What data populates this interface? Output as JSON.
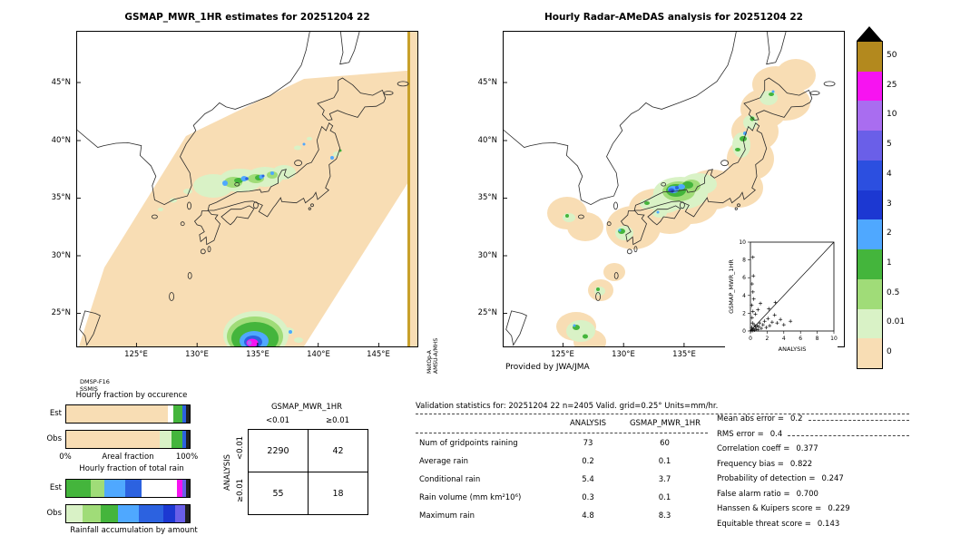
{
  "left_panel": {
    "title": "GSMAP_MWR_1HR estimates for 20251204 22",
    "lat_labels": [
      "45°N",
      "40°N",
      "35°N",
      "30°N",
      "25°N"
    ],
    "lon_labels": [
      "125°E",
      "130°E",
      "135°E",
      "140°E",
      "145°E"
    ],
    "source_line1": "DMSP-F16",
    "source_line2": "SSMIS",
    "edge_label_line1": "MetOp-A",
    "edge_label_line2": "AMSU-A/MHS"
  },
  "right_panel": {
    "title": "Hourly Radar-AMeDAS analysis for 20251204 22",
    "lat_labels": [
      "45°N",
      "40°N",
      "35°N",
      "30°N",
      "25°N"
    ],
    "lon_labels": [
      "125°E",
      "130°E",
      "135°E"
    ],
    "credit": "Provided by JWA/JMA",
    "inset": {
      "ylabel": "GSMAP_MWR_1HR",
      "xlabel": "ANALYSIS",
      "ticks": [
        0,
        2,
        4,
        6,
        8,
        10
      ]
    }
  },
  "colorbar": {
    "entries": [
      {
        "label": "50",
        "color": "#b3891e"
      },
      {
        "label": "25",
        "color": "#f713f1"
      },
      {
        "label": "10",
        "color": "#a96df0"
      },
      {
        "label": "5",
        "color": "#6a5fe8"
      },
      {
        "label": "4",
        "color": "#2c4fe0"
      },
      {
        "label": "3",
        "color": "#1c38d2"
      },
      {
        "label": "2",
        "color": "#4fa8ff"
      },
      {
        "label": "1",
        "color": "#44b53c"
      },
      {
        "label": "0.5",
        "color": "#a0dc78"
      },
      {
        "label": "0.01",
        "color": "#d9f2c6"
      },
      {
        "label": "0",
        "color": "#f8ddb4"
      }
    ]
  },
  "occurrence_chart": {
    "title": "Hourly fraction by occurence",
    "rows": [
      {
        "label": "Est",
        "segments": [
          {
            "color": "#f8ddb4",
            "pct": 82
          },
          {
            "color": "#ffffff",
            "pct": 5
          },
          {
            "color": "#44b53c",
            "pct": 7
          },
          {
            "color": "#2c62e0",
            "pct": 3
          },
          {
            "color": "#222222",
            "pct": 3
          }
        ]
      },
      {
        "label": "Obs",
        "segments": [
          {
            "color": "#f8ddb4",
            "pct": 76
          },
          {
            "color": "#d9f2c6",
            "pct": 9
          },
          {
            "color": "#44b53c",
            "pct": 9
          },
          {
            "color": "#2c62e0",
            "pct": 3
          },
          {
            "color": "#222222",
            "pct": 3
          }
        ]
      }
    ],
    "axis_min": "0%",
    "axis_label": "Areal fraction",
    "axis_max": "100%"
  },
  "totalrain_chart": {
    "title": "Hourly fraction of total rain",
    "rows": [
      {
        "label": "Est",
        "segments": [
          {
            "color": "#44b53c",
            "pct": 20
          },
          {
            "color": "#a0dc78",
            "pct": 11
          },
          {
            "color": "#4fa8ff",
            "pct": 17
          },
          {
            "color": "#2c62e0",
            "pct": 13
          },
          {
            "color": "#ffffff",
            "pct": 29
          },
          {
            "color": "#f713f1",
            "pct": 4
          },
          {
            "color": "#6a5fe8",
            "pct": 3
          },
          {
            "color": "#222222",
            "pct": 3
          }
        ]
      },
      {
        "label": "Obs",
        "segments": [
          {
            "color": "#d9f2c6",
            "pct": 13
          },
          {
            "color": "#a0dc78",
            "pct": 15
          },
          {
            "color": "#44b53c",
            "pct": 14
          },
          {
            "color": "#4fa8ff",
            "pct": 17
          },
          {
            "color": "#2c62e0",
            "pct": 20
          },
          {
            "color": "#1c38d2",
            "pct": 9
          },
          {
            "color": "#6a5fe8",
            "pct": 8
          },
          {
            "color": "#222222",
            "pct": 4
          }
        ]
      }
    ],
    "caption": "Rainfall accumulation by amount"
  },
  "contingency": {
    "title": "GSMAP_MWR_1HR",
    "side_label": "ANALYSIS",
    "col_headers": [
      "<0.01",
      "≥0.01"
    ],
    "row_headers": [
      "<0.01",
      "≥0.01"
    ],
    "values": [
      [
        "2290",
        "42"
      ],
      [
        "55",
        "18"
      ]
    ]
  },
  "validation": {
    "title": "Validation statistics for: 20251204 22  n=2405 Valid. grid=0.25° Units=mm/hr.",
    "col_headers": [
      "ANALYSIS",
      "GSMAP_MWR_1HR"
    ],
    "rows": [
      {
        "label": "Num of gridpoints raining",
        "analysis": "73",
        "gsmap": "60"
      },
      {
        "label": "Average rain",
        "analysis": "0.2",
        "gsmap": "0.1"
      },
      {
        "label": "Conditional rain",
        "analysis": "5.4",
        "gsmap": "3.7"
      },
      {
        "label": "Rain volume (mm km²10⁶)",
        "analysis": "0.3",
        "gsmap": "0.1"
      },
      {
        "label": "Maximum rain",
        "analysis": "4.8",
        "gsmap": "8.3"
      }
    ],
    "stats": [
      {
        "label": "Mean abs error =",
        "value": "0.2"
      },
      {
        "label": "RMS error =",
        "value": "0.4"
      },
      {
        "label": "Correlation coeff =",
        "value": "0.377"
      },
      {
        "label": "Frequency bias =",
        "value": "0.822"
      },
      {
        "label": "Probability of detection =",
        "value": "0.247"
      },
      {
        "label": "False alarm ratio =",
        "value": "0.700"
      },
      {
        "label": "Hanssen & Kuipers score =",
        "value": "0.229"
      },
      {
        "label": "Equitable threat score =",
        "value": "0.143"
      }
    ]
  },
  "chart_data": [
    {
      "type": "heatmap",
      "title": "GSMAP_MWR_1HR estimates for 20251204 22",
      "region": "Japan area, 120E-148E / 21N-49N",
      "units": "mm/hr",
      "levels": [
        0,
        0.01,
        0.5,
        1,
        2,
        3,
        4,
        5,
        10,
        25,
        50
      ],
      "annotations": [
        "DMSP-F16 SSMIS",
        "MetOp-A AMSU-A/MHS"
      ]
    },
    {
      "type": "heatmap",
      "title": "Hourly Radar-AMeDAS analysis for 20251204 22",
      "region": "Japan area, 120E-148E / 21N-49N",
      "units": "mm/hr",
      "levels": [
        0,
        0.01,
        0.5,
        1,
        2,
        3,
        4,
        5,
        10,
        25,
        50
      ],
      "annotations": [
        "Provided by JWA/JMA"
      ]
    },
    {
      "type": "scatter",
      "title": "GSMAP_MWR_1HR vs ANALYSIS",
      "xlabel": "ANALYSIS",
      "ylabel": "GSMAP_MWR_1HR",
      "xlim": [
        0,
        10
      ],
      "ylim": [
        0,
        10
      ],
      "points": [
        [
          0.1,
          0.05
        ],
        [
          0.2,
          0.15
        ],
        [
          0.3,
          0.05
        ],
        [
          0.15,
          0.4
        ],
        [
          0.35,
          0.25
        ],
        [
          0.5,
          0.1
        ],
        [
          0.6,
          0.45
        ],
        [
          0.7,
          0.2
        ],
        [
          0.45,
          0.7
        ],
        [
          0.25,
          0.9
        ],
        [
          0.8,
          0.6
        ],
        [
          0.9,
          0.15
        ],
        [
          1.0,
          0.5
        ],
        [
          1.1,
          0.9
        ],
        [
          1.3,
          0.3
        ],
        [
          1.5,
          0.7
        ],
        [
          1.7,
          1.1
        ],
        [
          1.9,
          0.4
        ],
        [
          2.1,
          1.4
        ],
        [
          2.3,
          0.6
        ],
        [
          2.6,
          1.0
        ],
        [
          2.9,
          1.8
        ],
        [
          3.2,
          0.9
        ],
        [
          3.6,
          1.3
        ],
        [
          4.0,
          0.7
        ],
        [
          4.8,
          1.1
        ],
        [
          0.2,
          1.5
        ],
        [
          0.3,
          2.2
        ],
        [
          0.15,
          2.9
        ],
        [
          0.4,
          3.6
        ],
        [
          0.3,
          4.4
        ],
        [
          0.2,
          5.3
        ],
        [
          0.35,
          6.2
        ],
        [
          0.3,
          8.3
        ],
        [
          0.9,
          2.4
        ],
        [
          1.2,
          3.1
        ],
        [
          0.6,
          1.9
        ],
        [
          2.2,
          2.5
        ],
        [
          3.0,
          3.2
        ]
      ]
    },
    {
      "type": "bar",
      "title": "Hourly fraction by occurence",
      "orientation": "horizontal",
      "categories": [
        "Est",
        "Obs"
      ],
      "xlabel": "Areal fraction",
      "xlim_pct": [
        0,
        100
      ],
      "note": "stacked fraction bars colored by rain-rate class (see occurrence_chart.rows)"
    },
    {
      "type": "bar",
      "title": "Hourly fraction of total rain",
      "orientation": "horizontal",
      "categories": [
        "Est",
        "Obs"
      ],
      "xlabel": "Rainfall accumulation by amount",
      "xlim_pct": [
        0,
        100
      ],
      "note": "stacked fraction bars colored by rain-rate class (see totalrain_chart.rows)"
    },
    {
      "type": "table",
      "title": "GSMAP_MWR_1HR contingency table (rows = ANALYSIS)",
      "columns": [
        "<0.01",
        "≥0.01"
      ],
      "rows": [
        [
          "<0.01",
          2290,
          42
        ],
        [
          "≥0.01",
          55,
          18
        ]
      ]
    },
    {
      "type": "table",
      "title": "Validation statistics for: 20251204 22 n=2405 Valid. grid=0.25° Units=mm/hr.",
      "columns": [
        "",
        "ANALYSIS",
        "GSMAP_MWR_1HR"
      ],
      "rows": [
        [
          "Num of gridpoints raining",
          73,
          60
        ],
        [
          "Average rain",
          0.2,
          0.1
        ],
        [
          "Conditional rain",
          5.4,
          3.7
        ],
        [
          "Rain volume (mm km²10⁶)",
          0.3,
          0.1
        ],
        [
          "Maximum rain",
          4.8,
          8.3
        ]
      ],
      "stats": {
        "Mean abs error": 0.2,
        "RMS error": 0.4,
        "Correlation coeff": 0.377,
        "Frequency bias": 0.822,
        "Probability of detection": 0.247,
        "False alarm ratio": 0.7,
        "Hanssen & Kuipers score": 0.229,
        "Equitable threat score": 0.143
      }
    }
  ]
}
